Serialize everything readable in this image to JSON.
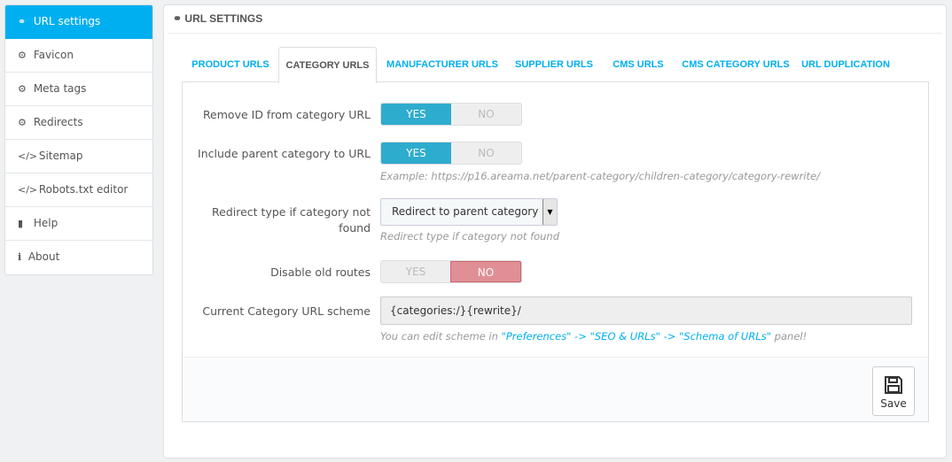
{
  "sidebar": {
    "items": [
      {
        "label": "URL settings",
        "icon": "link-icon",
        "glyph": "⚭"
      },
      {
        "label": "Favicon",
        "icon": "gear-icon",
        "glyph": "⚙"
      },
      {
        "label": "Meta tags",
        "icon": "gear-icon",
        "glyph": "⚙"
      },
      {
        "label": "Redirects",
        "icon": "gear-icon",
        "glyph": "⚙"
      },
      {
        "label": "Sitemap",
        "icon": "code-icon",
        "glyph": "</>"
      },
      {
        "label": "Robots.txt editor",
        "icon": "code-icon",
        "glyph": "</>"
      },
      {
        "label": "Help",
        "icon": "book-icon",
        "glyph": "▮"
      },
      {
        "label": "About",
        "icon": "info-icon",
        "glyph": "i"
      }
    ]
  },
  "panel": {
    "title": "URL SETTINGS",
    "title_icon": "⚭"
  },
  "tabs": [
    "PRODUCT URLS",
    "CATEGORY URLS",
    "MANUFACTURER URLS",
    "SUPPLIER URLS",
    "CMS URLS",
    "CMS CATEGORY URLS",
    "URL DUPLICATION"
  ],
  "active_tab": "CATEGORY URLS",
  "form": {
    "remove_id": {
      "label": "Remove ID from category URL",
      "yes": "YES",
      "no": "NO",
      "value": "YES"
    },
    "include_parent": {
      "label": "Include parent category to URL",
      "yes": "YES",
      "no": "NO",
      "value": "YES",
      "help": "Example: https://p16.areama.net/parent-category/children-category/category-rewrite/"
    },
    "redirect_type": {
      "label": "Redirect type if category not found",
      "value": "Redirect to parent category",
      "help": "Redirect type if category not found"
    },
    "disable_old": {
      "label": "Disable old routes",
      "yes": "YES",
      "no": "NO",
      "value": "NO"
    },
    "scheme": {
      "label": "Current Category URL scheme",
      "value": "{categories:/}{rewrite}/",
      "help_prefix": "You can edit scheme in ",
      "link1": "\"Preferences\"",
      "sep1": " -> ",
      "link2": "\"SEO & URLs\"",
      "sep2": " -> ",
      "link3": "\"Schema of URLs\"",
      "help_suffix": " panel!"
    }
  },
  "save_label": "Save",
  "colors": {
    "accent": "#00aff0",
    "yes": "#2eacce",
    "no": "#e08f95"
  }
}
